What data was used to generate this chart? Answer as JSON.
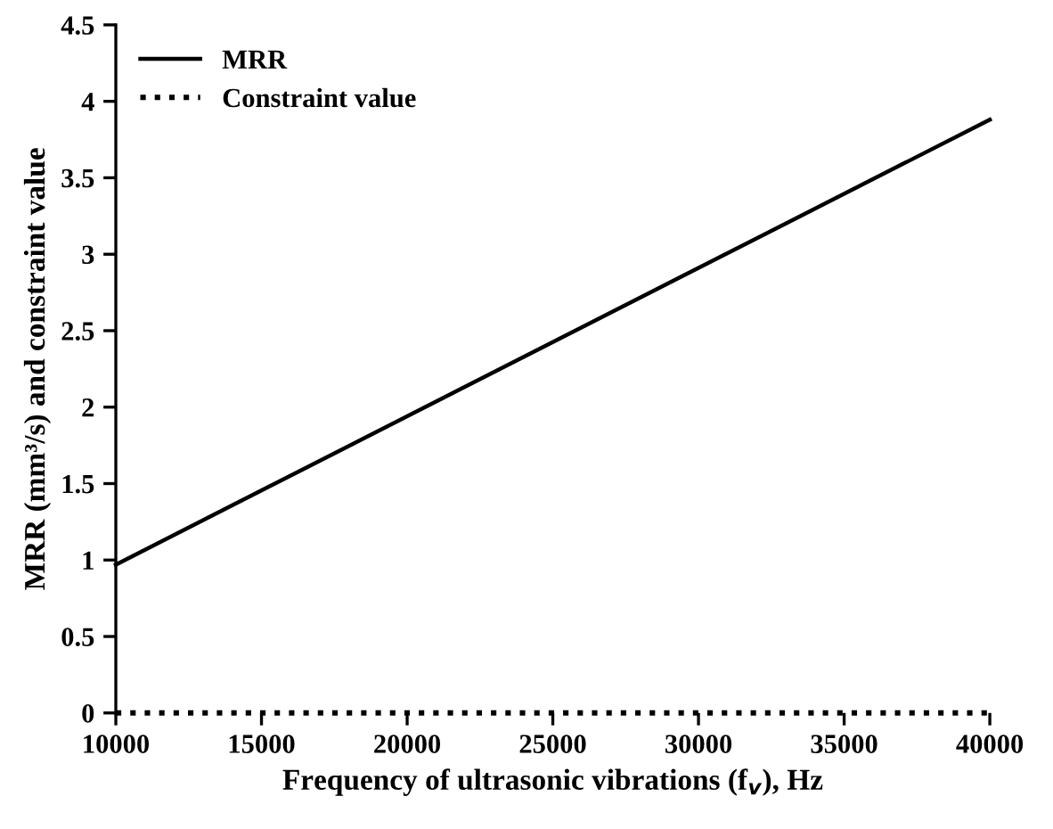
{
  "chart_data": {
    "type": "line",
    "xlabel": "Frequency of ultrasonic vibrations (f$_{v}$), Hz",
    "ylabel": "MRR (mm³/s) and constraint value",
    "x": [
      10000,
      40000
    ],
    "series": [
      {
        "name": "MRR",
        "color": "#000000",
        "line_style": "solid",
        "values": [
          0.97,
          3.88
        ]
      },
      {
        "name": "Constraint value",
        "color": "#000000",
        "line_style": "dotted",
        "values": [
          0,
          0
        ]
      }
    ],
    "xlim": [
      10000,
      40000
    ],
    "xticks": [
      10000,
      15000,
      20000,
      25000,
      30000,
      35000,
      40000
    ],
    "ylim": [
      0,
      4.5
    ],
    "yticks": [
      0,
      0.5,
      1,
      1.5,
      2,
      2.5,
      3,
      3.5,
      4,
      4.5
    ],
    "grid": false,
    "legend": "top left",
    "marker": "none"
  }
}
